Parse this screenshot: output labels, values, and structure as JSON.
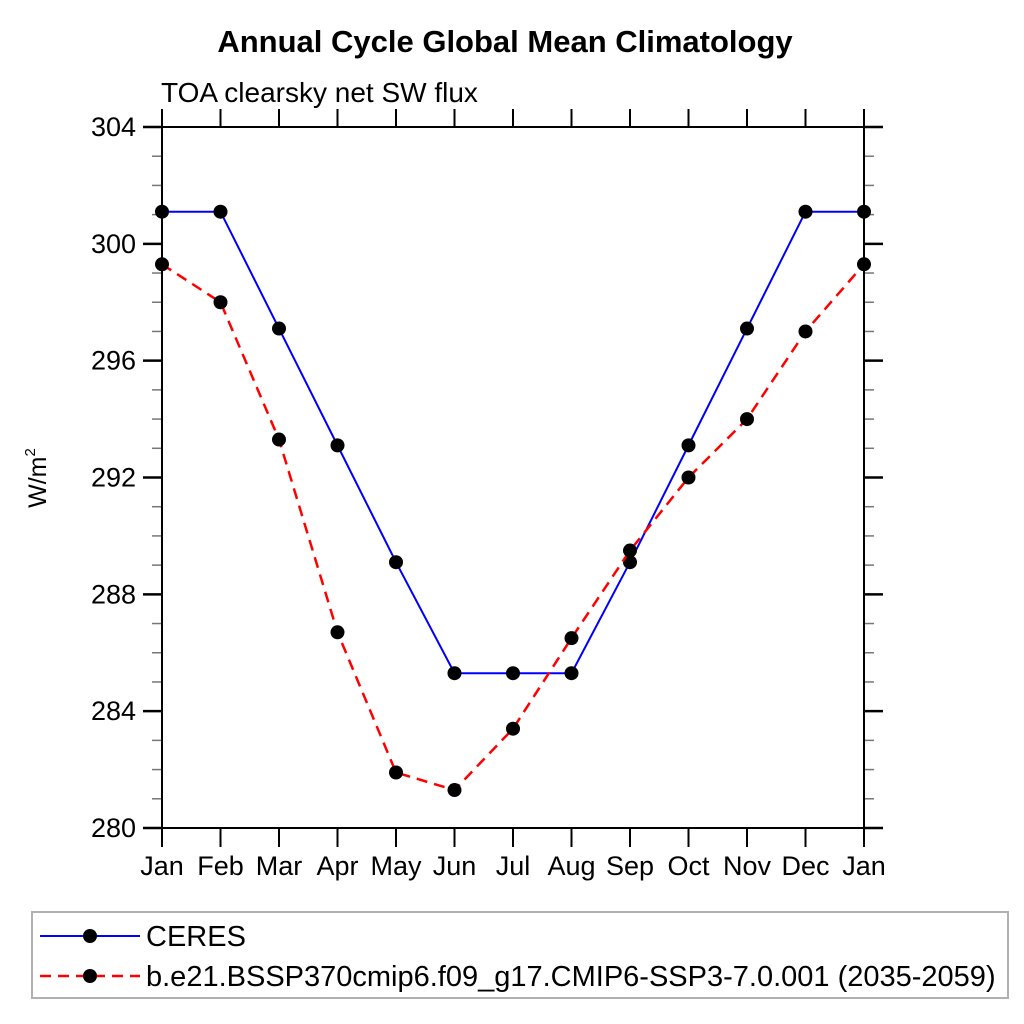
{
  "chart_data": {
    "type": "line",
    "title": "Annual Cycle Global Mean Climatology",
    "subtitle": "TOA clearsky net SW flux",
    "ylabel": {
      "base": "W/m",
      "exponent": "2"
    },
    "x_categories": [
      "Jan",
      "Feb",
      "Mar",
      "Apr",
      "May",
      "Jun",
      "Jul",
      "Aug",
      "Sep",
      "Oct",
      "Nov",
      "Dec",
      "Jan"
    ],
    "ylim": [
      280,
      304
    ],
    "y_major_ticks": [
      280,
      284,
      288,
      292,
      296,
      300,
      304
    ],
    "y_minor_step": 1,
    "grid": false,
    "legend_position": "bottom-left",
    "colors": {
      "axis": "#000000",
      "minor_tick": "#777777",
      "marker": "#000000",
      "legend_border": "#b0b0b0",
      "background": "#ffffff"
    },
    "series": [
      {
        "name": "CERES",
        "color": "#0000ff",
        "line_style": "solid",
        "marker": "filled-circle",
        "marker_color": "#000000",
        "values": [
          301.1,
          301.1,
          297.1,
          293.1,
          289.1,
          285.3,
          285.3,
          285.3,
          289.1,
          293.1,
          297.1,
          301.1,
          301.1
        ]
      },
      {
        "name": "b.e21.BSSP370cmip6.f09_g17.CMIP6-SSP3-7.0.001 (2035-2059)",
        "color": "#ff0000",
        "line_style": "dashed",
        "marker": "filled-circle",
        "marker_color": "#000000",
        "values": [
          299.3,
          298.0,
          293.3,
          286.7,
          281.9,
          281.3,
          283.4,
          286.5,
          289.5,
          292.0,
          294.0,
          297.0,
          299.3
        ]
      }
    ]
  }
}
